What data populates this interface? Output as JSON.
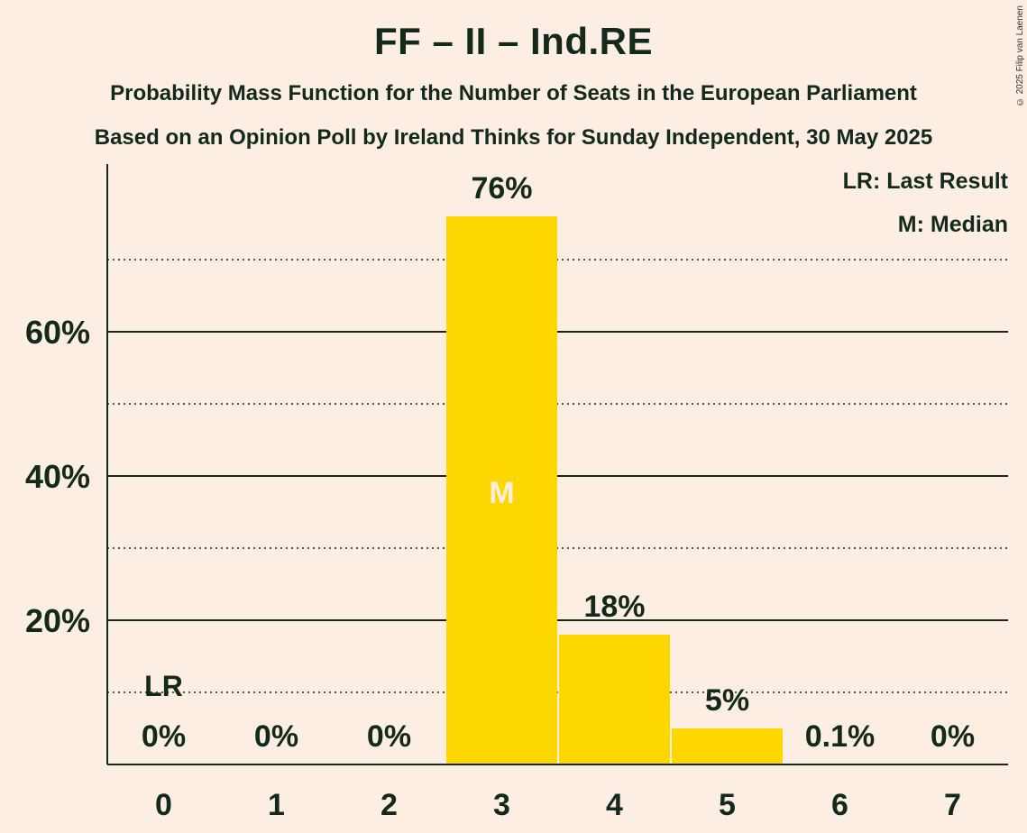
{
  "title": "FF – II – Ind.RE",
  "subtitle": "Probability Mass Function for the Number of Seats in the European Parliament",
  "subtitle2": "Based on an Opinion Poll by Ireland Thinks for Sunday Independent, 30 May 2025",
  "copyright": "© 2025 Filip van Laenen",
  "legend": {
    "last_result": "LR: Last Result",
    "median": "M: Median"
  },
  "colors": {
    "background": "#FDEEE4",
    "bar": "#FFD700",
    "text": "#13291B",
    "median_text": "#FDEEE4"
  },
  "chart_data": {
    "type": "bar",
    "title": "FF – II – Ind.RE",
    "categories": [
      "0",
      "1",
      "2",
      "3",
      "4",
      "5",
      "6",
      "7"
    ],
    "values": [
      0,
      0,
      0,
      76,
      18,
      5,
      0.1,
      0
    ],
    "value_labels": [
      "0%",
      "0%",
      "0%",
      "76%",
      "18%",
      "5%",
      "0.1%",
      "0%"
    ],
    "ylim": [
      0,
      80
    ],
    "y_ticks": [
      20,
      40,
      60
    ],
    "y_tick_labels": [
      "20%",
      "40%",
      "60%"
    ],
    "minor_gridlines": [
      10,
      30,
      50,
      70
    ],
    "grid": true,
    "legend_position": "top-right",
    "last_result": {
      "category": "0",
      "label": "LR"
    },
    "median": {
      "category": "3",
      "label": "M"
    }
  }
}
